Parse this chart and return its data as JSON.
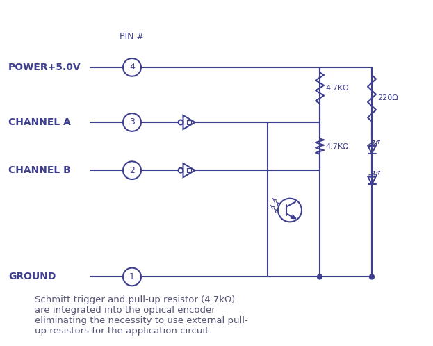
{
  "bg_color": "#ffffff",
  "line_color": "#3d3d8f",
  "text_color": "#3d3d8f",
  "label_color": "#3d3d8f",
  "title": "",
  "caption": "Schmitt trigger and pull-up resistor (4.7kΩ)\nare integrated into the optical encoder\neliminating the necessity to use external pull-\nup resistors for the application circuit.",
  "pin_label": "PIN #",
  "labels": [
    "POWER+5.0V",
    "CHANNEL A",
    "CHANNEL B",
    "GROUND"
  ],
  "pin_numbers": [
    "4",
    "3",
    "2",
    "1"
  ],
  "resistor_labels": [
    "4.7KΩ",
    "4.7KΩ",
    "220Ω"
  ],
  "font_size_label": 10,
  "font_size_pin": 9,
  "font_size_caption": 10
}
